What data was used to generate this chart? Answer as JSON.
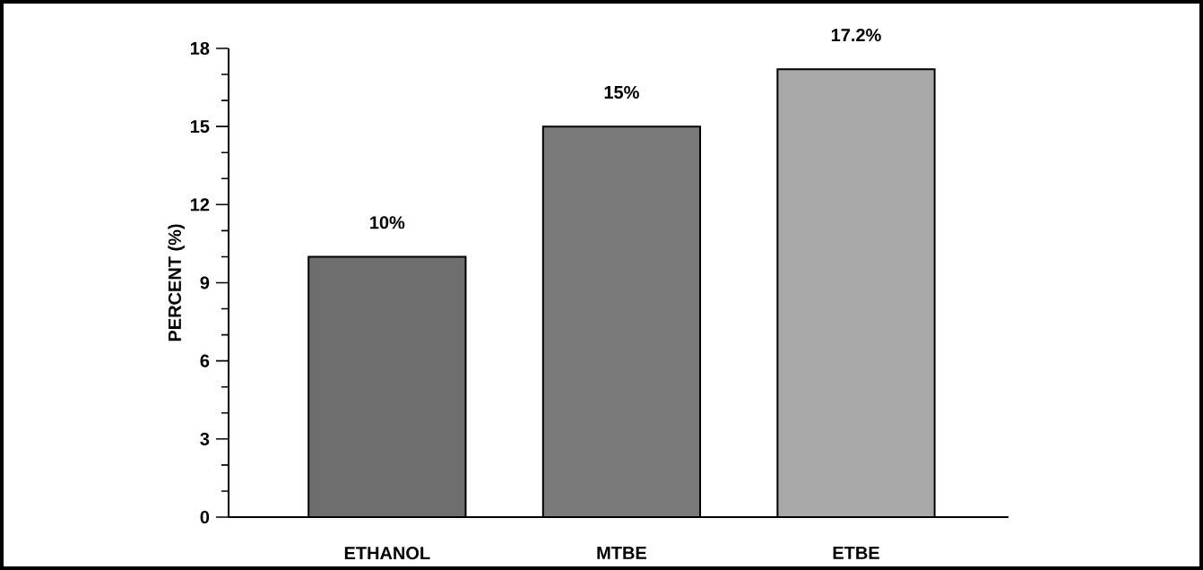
{
  "chart_data": {
    "type": "bar",
    "ylabel": "PERCENT (%)",
    "categories": [
      "ETHANOL",
      "MTBE",
      "ETBE"
    ],
    "values": [
      10,
      15,
      17.2
    ],
    "value_labels": [
      "10%",
      "15%",
      "17.2%"
    ],
    "colors": [
      "#6e6e6e",
      "#7a7a7a",
      "#a8a8a8"
    ],
    "ylim": [
      0,
      18
    ],
    "yticks": [
      0,
      3,
      6,
      9,
      12,
      15,
      18
    ]
  }
}
